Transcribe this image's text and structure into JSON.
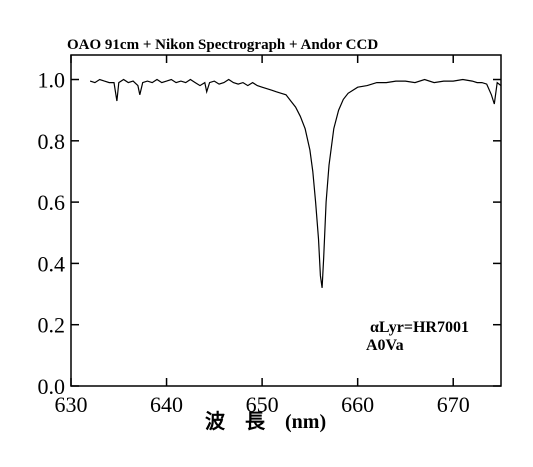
{
  "chart_data": {
    "type": "line",
    "title": "OAO 91cm + Nikon Spectrograph + Andor CCD",
    "xlabel": "波　長　(nm)",
    "ylabel": "",
    "xlim": [
      630,
      675
    ],
    "ylim": [
      0.0,
      1.08
    ],
    "x_ticks": [
      630,
      640,
      650,
      660,
      670
    ],
    "x_tick_labels": [
      "630",
      "640",
      "650",
      "660",
      "670"
    ],
    "y_ticks": [
      0.0,
      0.2,
      0.4,
      0.6,
      0.8,
      1.0
    ],
    "y_tick_labels": [
      "0.0",
      "0.2",
      "0.4",
      "0.6",
      "0.8",
      "1.0"
    ],
    "grid": false,
    "annotations": [
      "αLyr=HR7001",
      "A0Va"
    ],
    "series": [
      {
        "x": [
          632.0,
          632.5,
          633.0,
          633.5,
          634.0,
          634.5,
          634.8,
          635.0,
          635.5,
          636.0,
          636.5,
          637.0,
          637.2,
          637.5,
          638.0,
          638.5,
          639.0,
          639.5,
          640.0,
          640.5,
          641.0,
          641.5,
          642.0,
          642.5,
          643.0,
          643.5,
          644.0,
          644.2,
          644.5,
          645.0,
          645.5,
          646.0,
          646.5,
          647.0,
          647.5,
          648.0,
          648.5,
          649.0,
          649.5,
          650.0,
          650.5,
          651.0,
          651.5,
          652.0,
          652.5,
          653.0,
          653.5,
          654.0,
          654.5,
          655.0,
          655.3,
          655.6,
          655.9,
          656.1,
          656.28,
          656.45,
          656.7,
          657.0,
          657.5,
          658.0,
          658.5,
          659.0,
          659.5,
          660.0,
          661.0,
          662.0,
          663.0,
          664.0,
          665.0,
          666.0,
          667.0,
          668.0,
          669.0,
          670.0,
          671.0,
          672.0,
          672.5,
          673.0,
          673.5,
          674.0,
          674.3,
          674.6,
          675.0
        ],
        "y": [
          0.995,
          0.99,
          1.0,
          0.995,
          0.99,
          0.99,
          0.93,
          0.99,
          1.0,
          0.99,
          0.995,
          0.98,
          0.95,
          0.99,
          0.995,
          0.99,
          1.0,
          0.99,
          0.995,
          1.0,
          0.99,
          0.995,
          0.99,
          1.0,
          0.99,
          0.98,
          0.99,
          0.96,
          0.99,
          0.995,
          0.985,
          0.99,
          1.0,
          0.99,
          0.985,
          0.99,
          0.98,
          0.99,
          0.98,
          0.975,
          0.97,
          0.965,
          0.96,
          0.955,
          0.95,
          0.93,
          0.91,
          0.88,
          0.84,
          0.77,
          0.7,
          0.6,
          0.48,
          0.36,
          0.32,
          0.42,
          0.6,
          0.72,
          0.84,
          0.9,
          0.935,
          0.955,
          0.965,
          0.975,
          0.98,
          0.99,
          0.99,
          0.995,
          0.995,
          0.99,
          1.0,
          0.99,
          0.995,
          0.995,
          1.0,
          0.995,
          0.99,
          0.99,
          0.985,
          0.95,
          0.92,
          0.99,
          0.98
        ]
      }
    ]
  }
}
